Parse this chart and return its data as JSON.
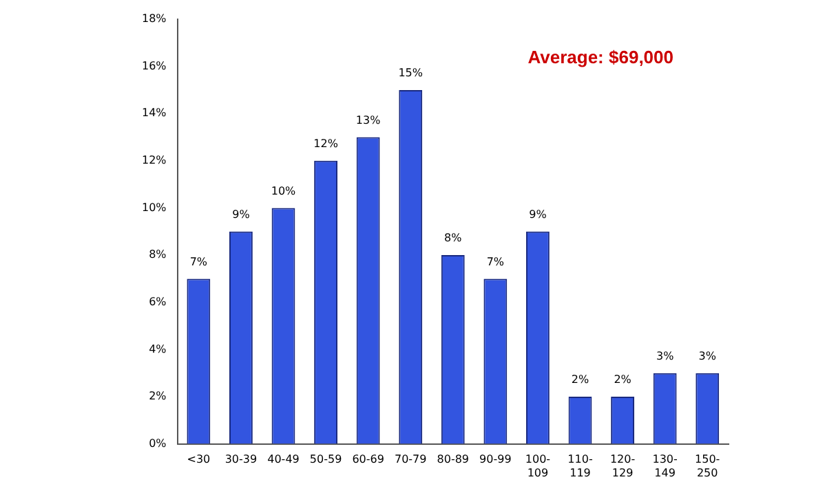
{
  "chart_data": {
    "type": "bar",
    "categories": [
      "<30",
      "30-39",
      "40-49",
      "50-59",
      "60-69",
      "70-79",
      "80-89",
      "90-99",
      "100-109",
      "110-119",
      "120-129",
      "130-149",
      "150-250"
    ],
    "values": [
      7,
      9,
      10,
      12,
      13,
      15,
      8,
      7,
      9,
      2,
      2,
      3,
      3
    ],
    "value_labels": [
      "7%",
      "9%",
      "10%",
      "12%",
      "13%",
      "15%",
      "8%",
      "7%",
      "9%",
      "2%",
      "2%",
      "3%",
      "3%"
    ],
    "color": "#3355e0",
    "ylim": [
      0,
      18
    ],
    "yticks": [
      {
        "value": 0,
        "label": "0%"
      },
      {
        "value": 2,
        "label": "2%"
      },
      {
        "value": 4,
        "label": "4%"
      },
      {
        "value": 6,
        "label": "6%"
      },
      {
        "value": 8,
        "label": "8%"
      },
      {
        "value": 10,
        "label": "10%"
      },
      {
        "value": 12,
        "label": "12%"
      },
      {
        "value": 14,
        "label": "14%"
      },
      {
        "value": 16,
        "label": "16%"
      },
      {
        "value": 18,
        "label": "18%"
      }
    ],
    "grid": false,
    "legend": false,
    "annotations": [
      "Average: $69,000"
    ]
  }
}
